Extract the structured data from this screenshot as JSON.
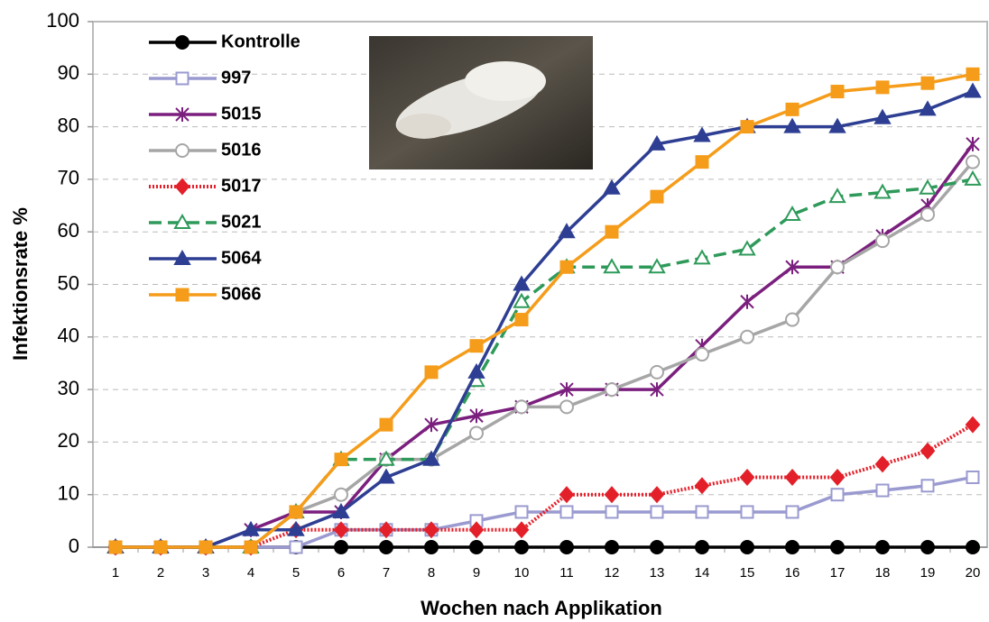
{
  "chart_data": {
    "type": "line",
    "xlabel": "Wochen nach Applikation",
    "ylabel": "Infektionsrate %",
    "categories": [
      "1",
      "2",
      "3",
      "4",
      "5",
      "6",
      "7",
      "8",
      "9",
      "10",
      "11",
      "12",
      "13",
      "14",
      "15",
      "16",
      "17",
      "18",
      "19",
      "20"
    ],
    "ylim": [
      0,
      100
    ],
    "yticks": [
      0,
      10,
      20,
      30,
      40,
      50,
      60,
      70,
      80,
      90,
      100
    ],
    "grid": true,
    "legend": "upper left",
    "series": [
      {
        "name": "Kontrolle",
        "color": "#000000",
        "marker": "circle",
        "filled": true,
        "dash": "solid",
        "values": [
          0,
          0,
          0,
          0,
          0,
          0,
          0,
          0,
          0,
          0,
          0,
          0,
          0,
          0,
          0,
          0,
          0,
          0,
          0,
          0
        ]
      },
      {
        "name": "997",
        "color": "#9a9ad0",
        "marker": "square",
        "filled": false,
        "dash": "solid",
        "values": [
          0,
          0,
          0,
          0,
          0,
          3.3,
          3.3,
          3.3,
          5,
          6.7,
          6.7,
          6.7,
          6.7,
          6.7,
          6.7,
          6.7,
          10,
          10.8,
          11.7,
          13.3
        ]
      },
      {
        "name": "5015",
        "color": "#7b1f7e",
        "marker": "asterisk",
        "filled": false,
        "dash": "solid",
        "values": [
          0,
          0,
          0,
          3.3,
          6.7,
          6.7,
          16.7,
          23.3,
          25,
          26.7,
          30,
          30,
          30,
          38.3,
          46.7,
          53.3,
          53.3,
          59.2,
          65,
          76.7
        ]
      },
      {
        "name": "5016",
        "color": "#a6a6a6",
        "marker": "circle",
        "filled": false,
        "dash": "solid",
        "values": [
          0,
          0,
          0,
          0,
          6.7,
          10,
          16.7,
          16.7,
          21.7,
          26.7,
          26.7,
          30,
          33.3,
          36.7,
          40,
          43.3,
          53.3,
          58.3,
          63.3,
          73.3
        ]
      },
      {
        "name": "5017",
        "color": "#e3202a",
        "marker": "diamond",
        "filled": true,
        "dash": "dotted",
        "values": [
          0,
          0,
          0,
          0,
          3.3,
          3.3,
          3.3,
          3.3,
          3.3,
          3.3,
          10,
          10,
          10,
          11.7,
          13.3,
          13.3,
          13.3,
          15.8,
          18.3,
          23.3
        ]
      },
      {
        "name": "5021",
        "color": "#2e9a5a",
        "marker": "triangle",
        "filled": false,
        "dash": "dashed",
        "values": [
          0,
          0,
          0,
          0,
          6.7,
          16.7,
          16.7,
          16.7,
          31.7,
          46.7,
          53.3,
          53.3,
          53.3,
          55,
          56.7,
          63.3,
          66.7,
          67.5,
          68.3,
          70
        ]
      },
      {
        "name": "5064",
        "color": "#2e3f93",
        "marker": "triangle",
        "filled": true,
        "dash": "solid",
        "values": [
          0,
          0,
          0,
          3.3,
          3.3,
          6.7,
          13.3,
          16.7,
          33.3,
          50,
          60,
          68.3,
          76.7,
          78.3,
          80,
          80,
          80,
          81.7,
          83.3,
          86.7
        ]
      },
      {
        "name": "5066",
        "color": "#f59c1a",
        "marker": "square",
        "filled": true,
        "dash": "solid",
        "values": [
          0,
          0,
          0,
          0,
          6.7,
          16.7,
          23.3,
          33.3,
          38.3,
          43.3,
          53.3,
          60,
          66.7,
          73.3,
          80,
          83.3,
          86.7,
          87.5,
          88.3,
          90
        ]
      }
    ]
  }
}
